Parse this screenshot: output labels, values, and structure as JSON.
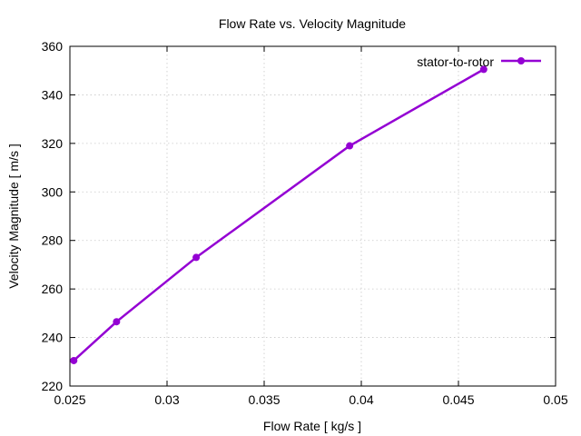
{
  "chart_data": {
    "type": "line",
    "title": "Flow Rate vs. Velocity Magnitude",
    "xlabel": "Flow Rate [ kg/s ]",
    "ylabel": "Velocity Magnitude [ m/s ]",
    "xlim": [
      0.025,
      0.05
    ],
    "ylim": [
      220,
      360
    ],
    "xticks": [
      0.025,
      0.03,
      0.035,
      0.04,
      0.045,
      0.05
    ],
    "xtick_labels": [
      "0.025",
      "0.03",
      "0.035",
      "0.04",
      "0.045",
      "0.05"
    ],
    "yticks": [
      220,
      240,
      260,
      280,
      300,
      320,
      340,
      360
    ],
    "ytick_labels": [
      "220",
      "240",
      "260",
      "280",
      "300",
      "320",
      "340",
      "360"
    ],
    "grid": true,
    "legend_position": "top-right",
    "series": [
      {
        "name": "stator-to-rotor",
        "color": "#9400d3",
        "marker": "circle",
        "x": [
          0.0252,
          0.0274,
          0.0315,
          0.0394,
          0.0463
        ],
        "y": [
          230.5,
          246.5,
          273.0,
          319.0,
          350.5
        ]
      }
    ]
  }
}
